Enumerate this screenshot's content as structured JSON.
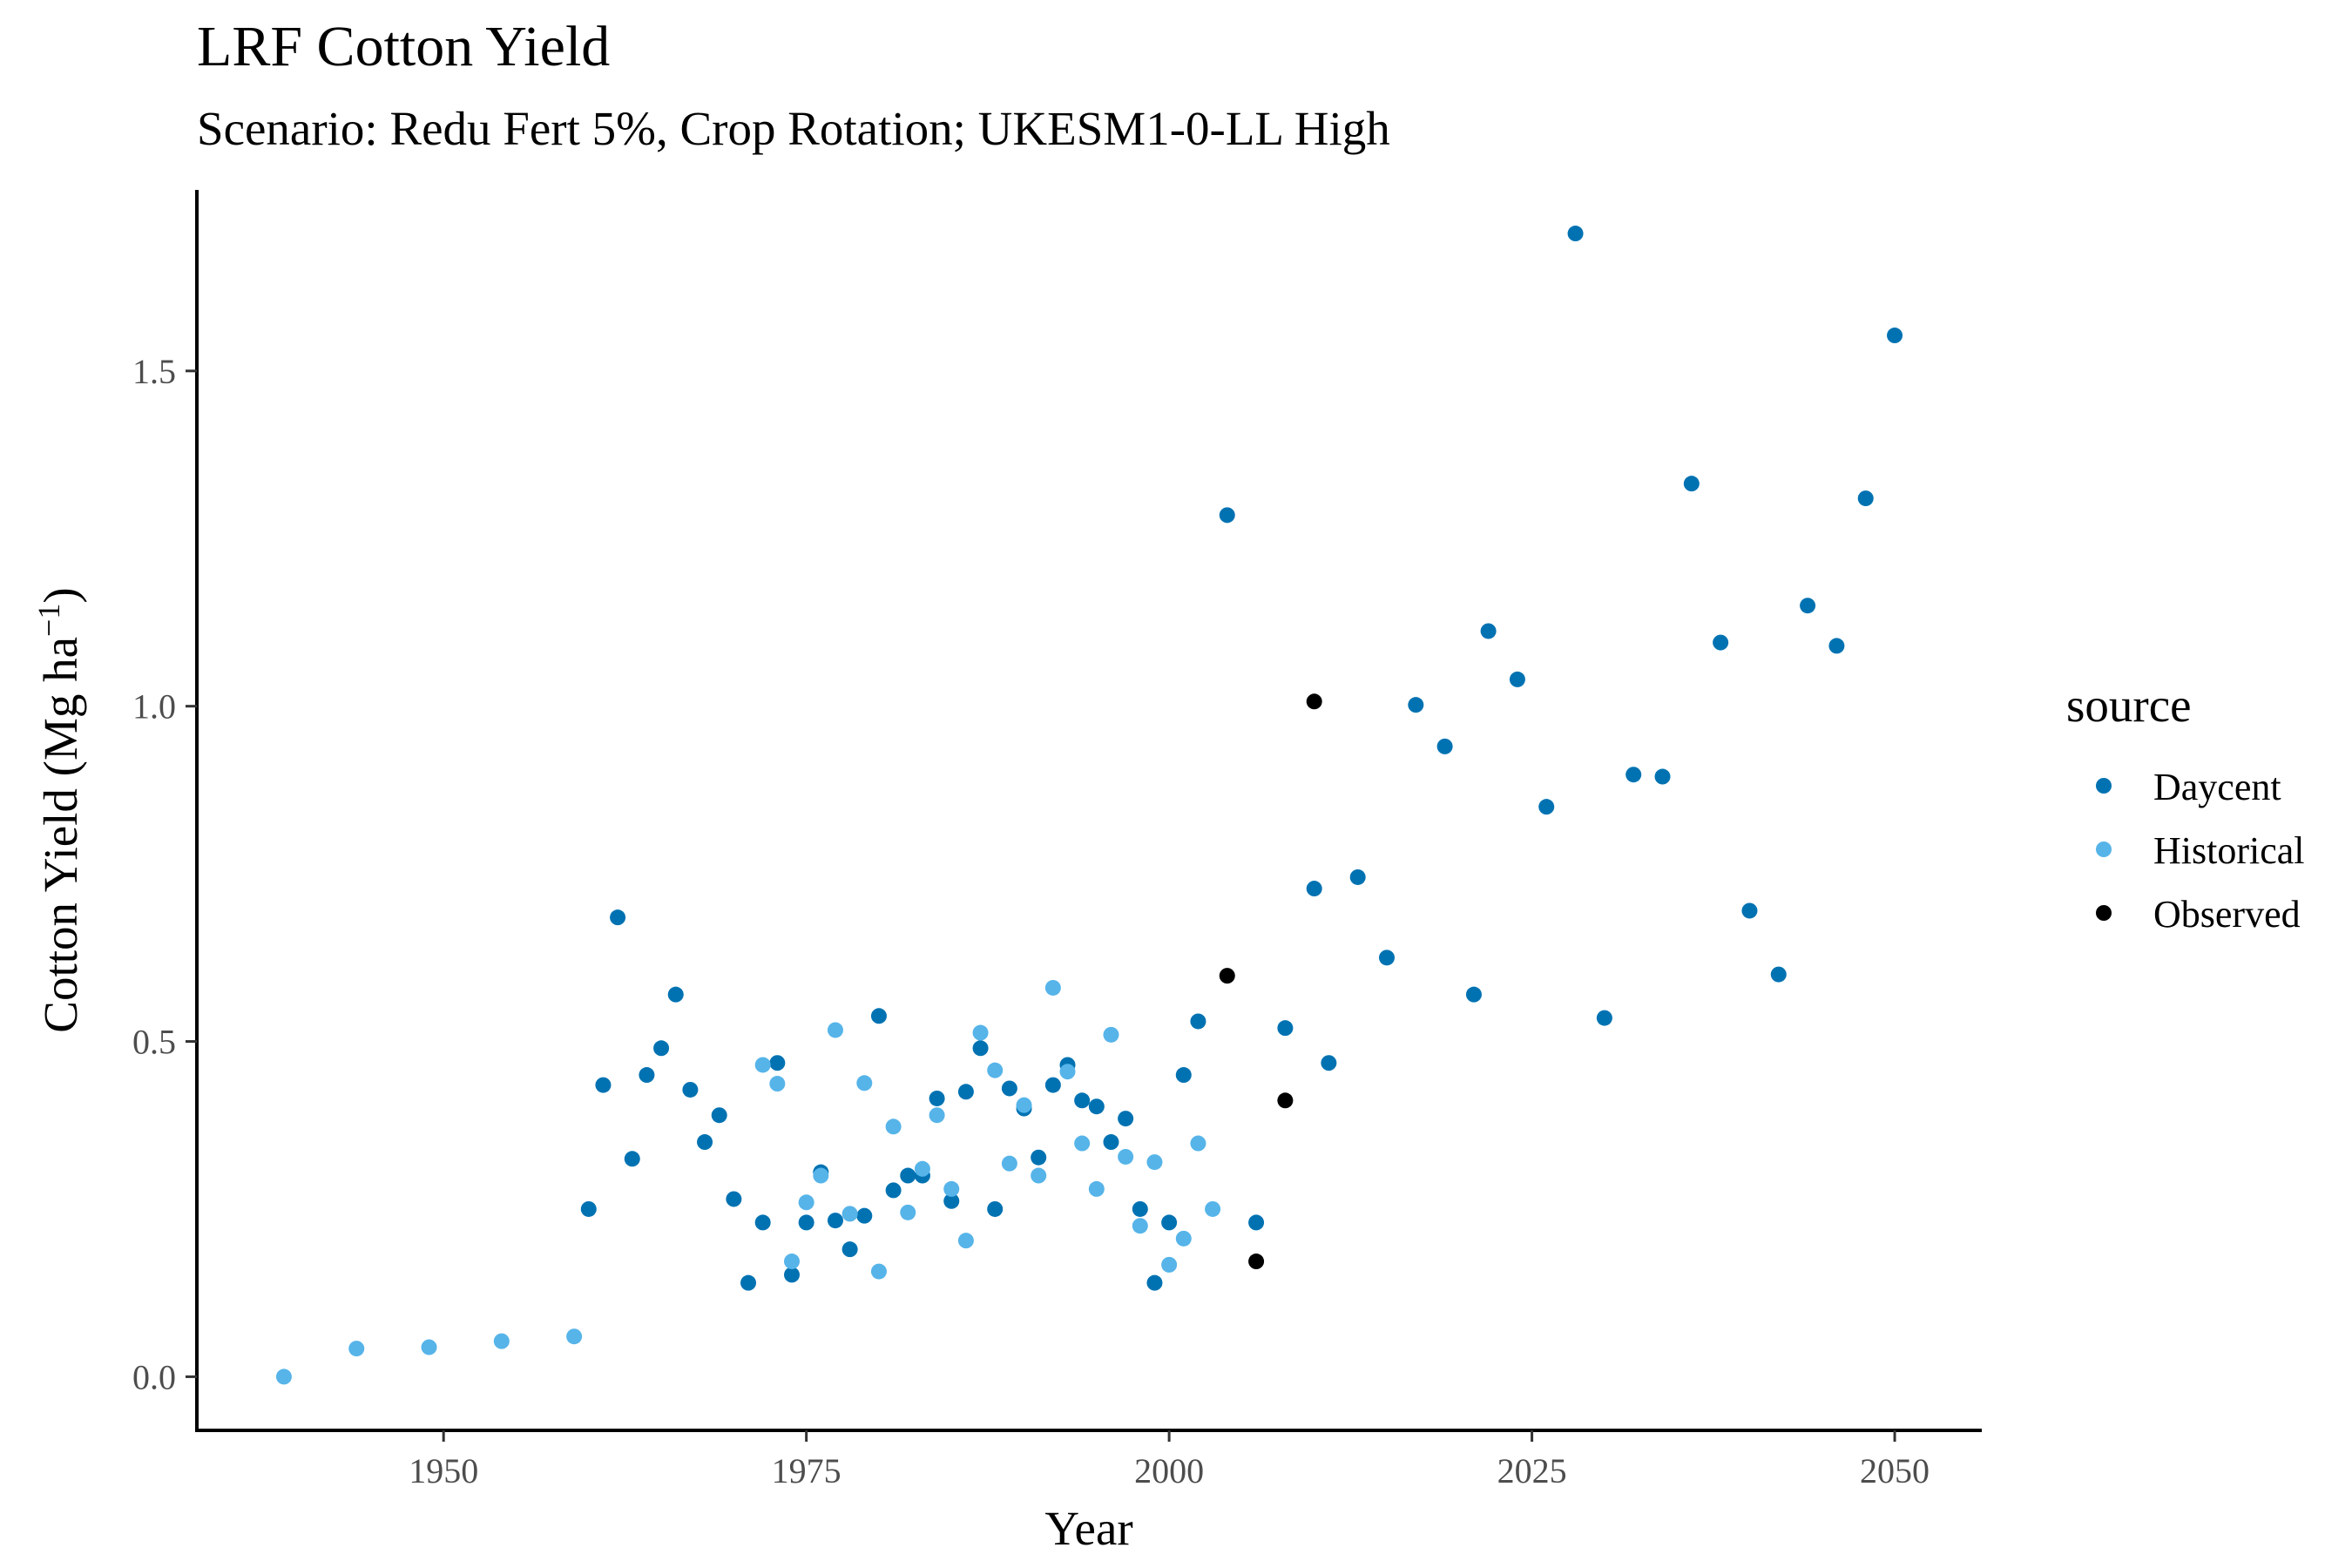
{
  "chart_data": {
    "type": "scatter",
    "title": "LRF Cotton Yield",
    "subtitle": "Scenario: Redu Fert 5%, Crop Rotation; UKESM1-0-LL High",
    "xlabel": "Year",
    "ylabel": "Cotton Yield (Mg ha",
    "ylabel_sup": "−1",
    "ylabel_close": ")",
    "xlim": [
      1933,
      2056
    ],
    "ylim": [
      -0.08,
      1.77
    ],
    "xticks": [
      1950,
      1975,
      2000,
      2025,
      2050
    ],
    "yticks": [
      0.0,
      0.5,
      1.0,
      1.5
    ],
    "ytick_labels": [
      "0.0",
      "0.5",
      "1.0",
      "1.5"
    ],
    "grid": false,
    "legend": {
      "title": "source",
      "position": "right"
    },
    "series": [
      {
        "name": "Daycent",
        "color": "#0072B2",
        "points": [
          [
            1960,
            0.25
          ],
          [
            1961,
            0.435
          ],
          [
            1962,
            0.685
          ],
          [
            1963,
            0.325
          ],
          [
            1964,
            0.45
          ],
          [
            1965,
            0.49
          ],
          [
            1966,
            0.57
          ],
          [
            1967,
            0.428
          ],
          [
            1968,
            0.35
          ],
          [
            1969,
            0.39
          ],
          [
            1970,
            0.265
          ],
          [
            1971,
            0.14
          ],
          [
            1972,
            0.23
          ],
          [
            1973,
            0.468
          ],
          [
            1974,
            0.152
          ],
          [
            1975,
            0.23
          ],
          [
            1976,
            0.305
          ],
          [
            1977,
            0.233
          ],
          [
            1978,
            0.19
          ],
          [
            1979,
            0.24
          ],
          [
            1980,
            0.538
          ],
          [
            1981,
            0.278
          ],
          [
            1982,
            0.3
          ],
          [
            1983,
            0.3
          ],
          [
            1984,
            0.415
          ],
          [
            1985,
            0.262
          ],
          [
            1986,
            0.425
          ],
          [
            1987,
            0.49
          ],
          [
            1988,
            0.25
          ],
          [
            1989,
            0.43
          ],
          [
            1990,
            0.4
          ],
          [
            1991,
            0.327
          ],
          [
            1992,
            0.435
          ],
          [
            1993,
            0.465
          ],
          [
            1994,
            0.412
          ],
          [
            1995,
            0.403
          ],
          [
            1996,
            0.35
          ],
          [
            1997,
            0.385
          ],
          [
            1998,
            0.25
          ],
          [
            1999,
            0.14
          ],
          [
            2000,
            0.23
          ],
          [
            2001,
            0.45
          ],
          [
            2002,
            0.53
          ],
          [
            2004,
            1.285
          ],
          [
            2006,
            0.23
          ],
          [
            2008,
            0.52
          ],
          [
            2010,
            0.728
          ],
          [
            2011,
            0.468
          ],
          [
            2013,
            0.745
          ],
          [
            2015,
            0.625
          ],
          [
            2017,
            1.002
          ],
          [
            2019,
            0.94
          ],
          [
            2021,
            0.57
          ],
          [
            2022,
            1.112
          ],
          [
            2024,
            1.04
          ],
          [
            2026,
            0.85
          ],
          [
            2028,
            1.705
          ],
          [
            2030,
            0.535
          ],
          [
            2032,
            0.898
          ],
          [
            2034,
            0.895
          ],
          [
            2036,
            1.332
          ],
          [
            2038,
            1.095
          ],
          [
            2040,
            0.695
          ],
          [
            2042,
            0.6
          ],
          [
            2044,
            1.15
          ],
          [
            2046,
            1.09
          ],
          [
            2048,
            1.31
          ],
          [
            2050,
            1.553
          ]
        ]
      },
      {
        "name": "Historical",
        "color": "#56B4E9",
        "points": [
          [
            1939,
            0.0
          ],
          [
            1944,
            0.042
          ],
          [
            1949,
            0.044
          ],
          [
            1954,
            0.053
          ],
          [
            1959,
            0.06
          ],
          [
            1972,
            0.465
          ],
          [
            1973,
            0.437
          ],
          [
            1974,
            0.172
          ],
          [
            1975,
            0.26
          ],
          [
            1976,
            0.3
          ],
          [
            1977,
            0.517
          ],
          [
            1978,
            0.243
          ],
          [
            1979,
            0.438
          ],
          [
            1980,
            0.157
          ],
          [
            1981,
            0.373
          ],
          [
            1982,
            0.245
          ],
          [
            1983,
            0.31
          ],
          [
            1984,
            0.39
          ],
          [
            1985,
            0.28
          ],
          [
            1986,
            0.203
          ],
          [
            1987,
            0.513
          ],
          [
            1988,
            0.457
          ],
          [
            1989,
            0.318
          ],
          [
            1990,
            0.405
          ],
          [
            1991,
            0.3
          ],
          [
            1992,
            0.58
          ],
          [
            1993,
            0.455
          ],
          [
            1994,
            0.348
          ],
          [
            1995,
            0.28
          ],
          [
            1996,
            0.51
          ],
          [
            1997,
            0.328
          ],
          [
            1998,
            0.225
          ],
          [
            1999,
            0.32
          ],
          [
            2000,
            0.167
          ],
          [
            2001,
            0.206
          ],
          [
            2002,
            0.348
          ],
          [
            2003,
            0.25
          ]
        ]
      },
      {
        "name": "Observed",
        "color": "#000000",
        "points": [
          [
            2004,
            0.598
          ],
          [
            2006,
            0.172
          ],
          [
            2008,
            0.412
          ],
          [
            2010,
            1.007
          ]
        ]
      }
    ]
  }
}
